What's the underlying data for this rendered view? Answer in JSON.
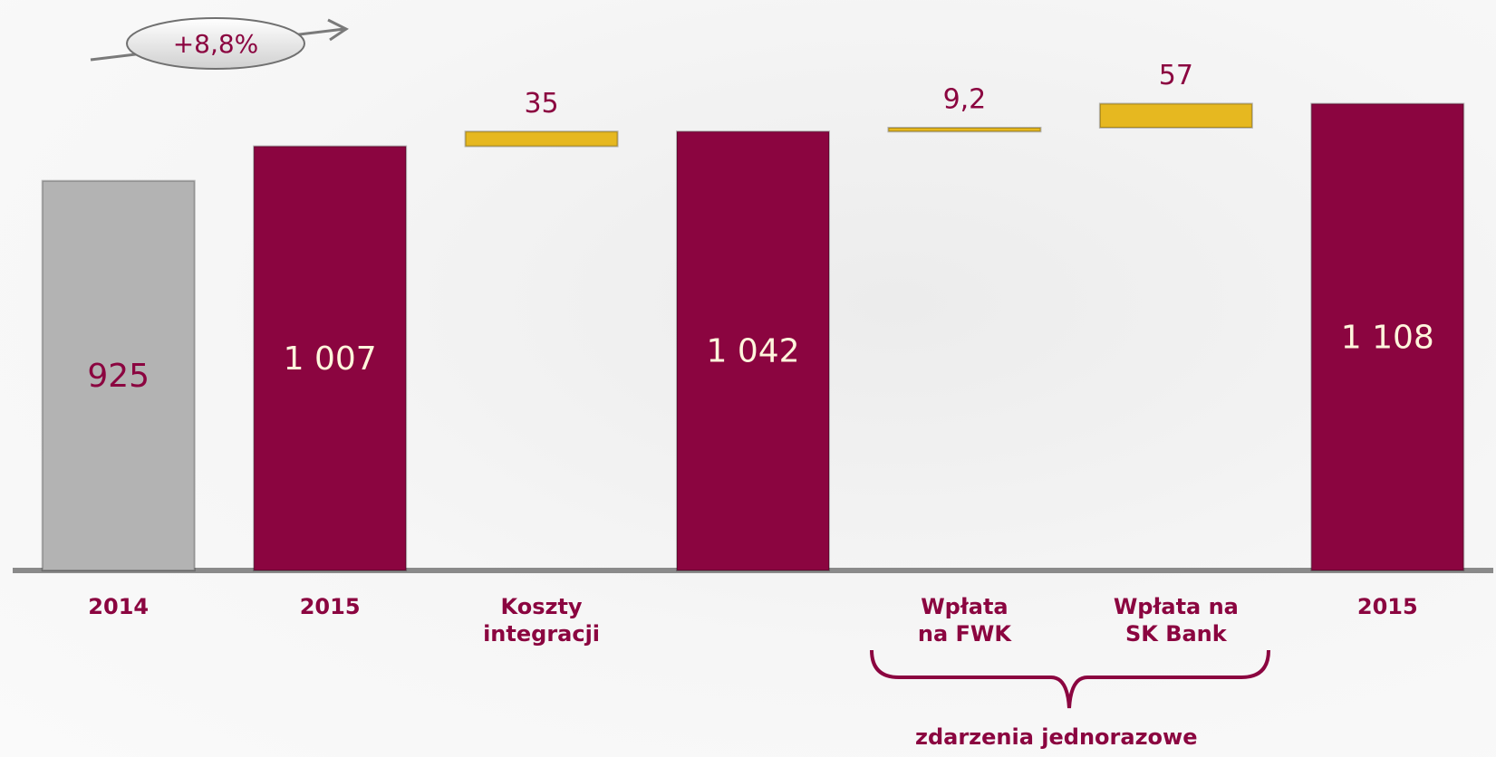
{
  "chart_data": {
    "type": "waterfall",
    "categories": [
      "2014",
      "2015",
      "Koszty\nintegracji",
      null,
      "Wpłata\nna FWK",
      "Wpłata na\nSK Bank",
      "2015"
    ],
    "values": [
      925,
      1007,
      35,
      1042,
      9.2,
      57,
      1108
    ],
    "value_labels": [
      "925",
      "1 007",
      "35",
      "1 042",
      "9,2",
      "57",
      "1 108"
    ],
    "measure": [
      "total",
      "total",
      "increase",
      "total",
      "increase",
      "increase",
      "total"
    ],
    "colors": [
      "#b3b3b3",
      "#8b0540",
      "#e6b820",
      "#8b0540",
      "#e6b820",
      "#e6b820",
      "#8b0540"
    ],
    "label_colors": [
      "#8b0540",
      "#fff6dc",
      "#8b0540",
      "#fff6dc",
      "#8b0540",
      "#8b0540",
      "#fff6dc"
    ],
    "ylim": [
      0,
      1350
    ],
    "annotations": [
      "+8,8%",
      "zdarzenia jednorazowe"
    ]
  }
}
